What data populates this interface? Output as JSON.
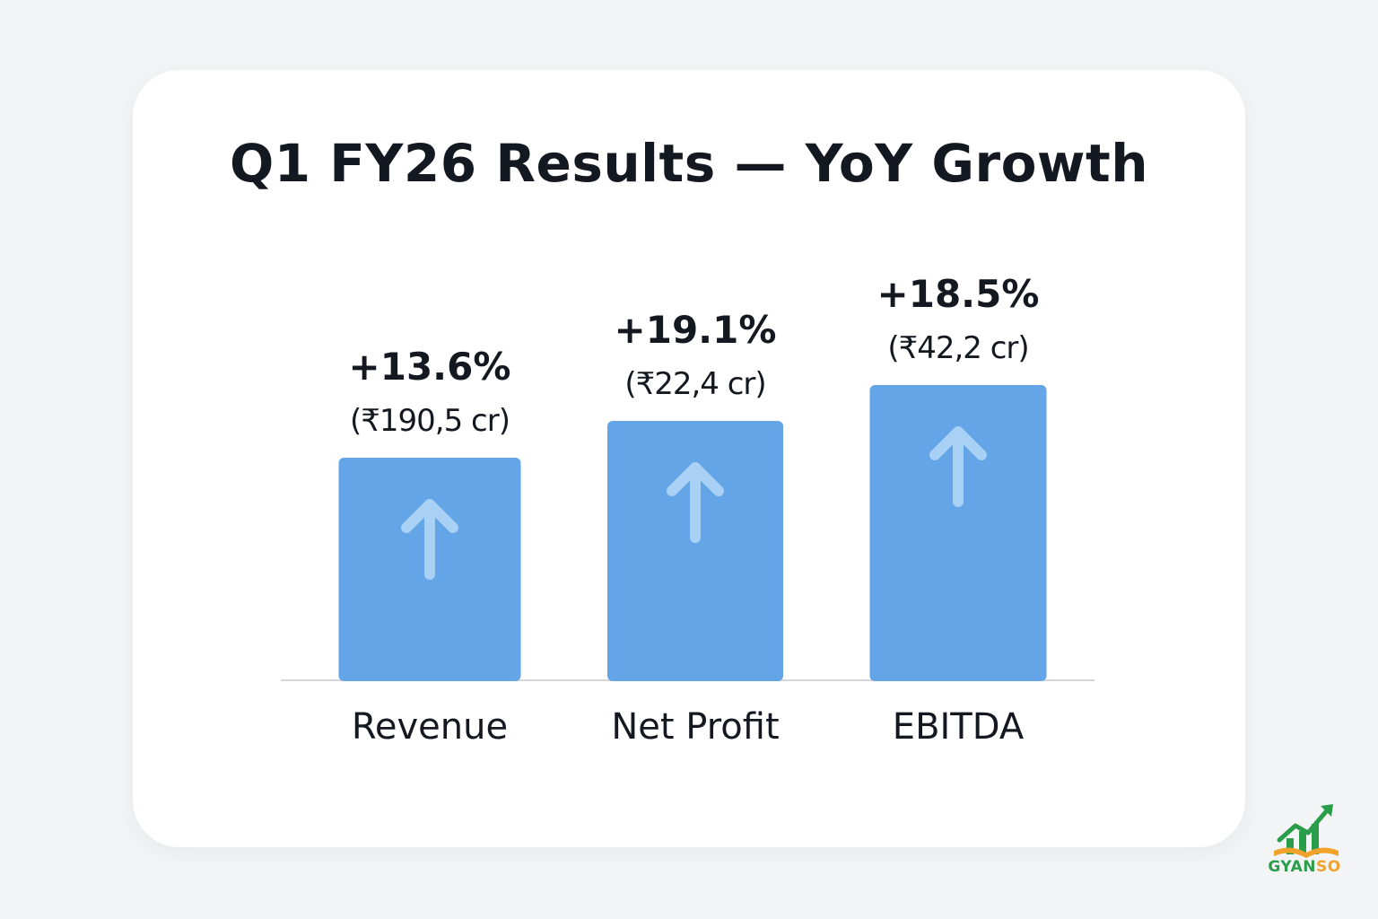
{
  "chart_data": {
    "type": "bar",
    "title": "Q1 FY26 Results — YoY Growth",
    "categories": [
      "Revenue",
      "Net Profit",
      "EBITDA"
    ],
    "values": [
      13.6,
      19.1,
      18.5
    ],
    "value_labels": [
      "+13.6%",
      "+19.1%",
      "+18.5%"
    ],
    "amount_labels": [
      "(₹190,5 cr)",
      "(₹22,4 cr)",
      "(₹42,2 cr)"
    ],
    "xlabel": "",
    "ylabel": "",
    "grid": false,
    "legend": "none",
    "bar_color": "#63a5e6",
    "arrow_color": "#a9d0f5"
  },
  "brand": {
    "name_left": "GYAN",
    "name_right": "SO",
    "color_left": "#2a9d4b",
    "color_right": "#f0a22b",
    "icon": "growth-chart-icon"
  }
}
